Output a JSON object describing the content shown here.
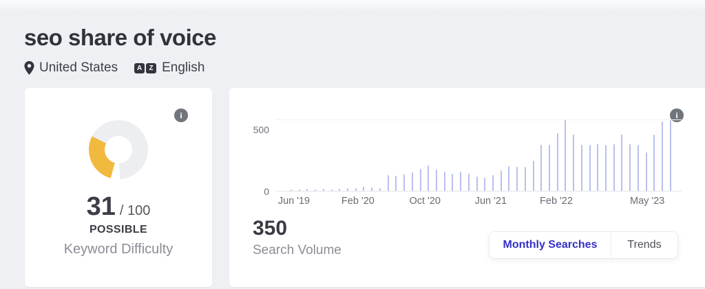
{
  "header": {
    "title": "seo share of voice",
    "location": "United States",
    "language": "English"
  },
  "icons": {
    "info_glyph": "i",
    "az_letters": [
      "A",
      "Z"
    ]
  },
  "difficulty_card": {
    "score": "31",
    "score_total": "/ 100",
    "level": "POSSIBLE",
    "label": "Keyword Difficulty",
    "gauge": {
      "value": 31,
      "max": 100,
      "fill_color": "#F2B93F",
      "track_color": "#ECEEF2",
      "arc_start_deg": 191,
      "arc_end_deg": 297,
      "needle_deg": 186
    }
  },
  "volume_card": {
    "value": "350",
    "label": "Search Volume",
    "tabs": [
      {
        "label": "Monthly Searches",
        "active": true,
        "color": "#332FC7"
      },
      {
        "label": "Trends",
        "active": false,
        "color": "#4D4D57"
      }
    ]
  },
  "chart_data": {
    "type": "bar",
    "title": "Monthly Searches",
    "xlabel": "",
    "ylabel": "",
    "ylim": [
      0,
      525
    ],
    "yticks": [
      0,
      500
    ],
    "ytick_labels": [
      "500",
      "0"
    ],
    "grid": "top-line-and-baseline",
    "bar_color": "#B8C0ED",
    "x_tick_labels": [
      {
        "label": "Jun '19",
        "pos": 0.009
      },
      {
        "label": "Feb '20",
        "pos": 0.177
      },
      {
        "label": "Oct '20",
        "pos": 0.353
      },
      {
        "label": "Jun '21",
        "pos": 0.526
      },
      {
        "label": "Feb '22",
        "pos": 0.698
      },
      {
        "label": "May '23",
        "pos": 0.937
      }
    ],
    "categories": [
      "Jun '19",
      "Jul '19",
      "Aug '19",
      "Sep '19",
      "Oct '19",
      "Nov '19",
      "Dec '19",
      "Jan '20",
      "Feb '20",
      "Mar '20",
      "Apr '20",
      "May '20",
      "Jun '20",
      "Jul '20",
      "Aug '20",
      "Sep '20",
      "Oct '20",
      "Nov '20",
      "Dec '20",
      "Jan '21",
      "Feb '21",
      "Mar '21",
      "Apr '21",
      "May '21",
      "Jun '21",
      "Jul '21",
      "Aug '21",
      "Sep '21",
      "Oct '21",
      "Nov '21",
      "Dec '21",
      "Jan '22",
      "Feb '22",
      "Mar '22",
      "Apr '22",
      "May '22",
      "Jun '22",
      "Jul '22",
      "Aug '22",
      "Sep '22",
      "Oct '22",
      "Nov '22",
      "Dec '22",
      "Jan '23",
      "Feb '23",
      "Mar '23",
      "Apr '23",
      "May '23"
    ],
    "values": [
      10,
      10,
      15,
      10,
      15,
      10,
      15,
      20,
      20,
      30,
      25,
      20,
      110,
      105,
      115,
      130,
      155,
      175,
      150,
      135,
      120,
      135,
      120,
      100,
      90,
      110,
      145,
      170,
      165,
      165,
      210,
      320,
      320,
      400,
      490,
      390,
      320,
      320,
      325,
      320,
      325,
      390,
      325,
      320,
      265,
      390,
      480,
      490
    ]
  }
}
